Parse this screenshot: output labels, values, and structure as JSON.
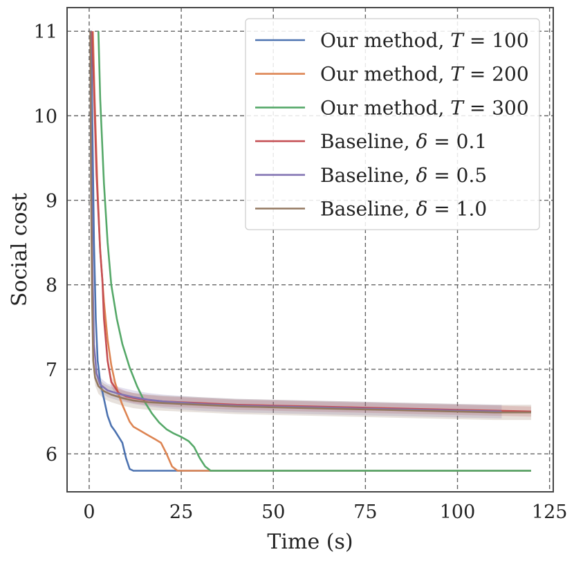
{
  "chart_data": {
    "type": "line",
    "title": "",
    "xlabel": "Time (s)",
    "ylabel": "Social cost",
    "xlim": [
      -6,
      126
    ],
    "ylim": [
      5.55,
      11.28
    ],
    "xticks": [
      0,
      25,
      50,
      75,
      100,
      125
    ],
    "yticks": [
      6,
      7,
      8,
      9,
      10,
      11
    ],
    "xtick_labels": [
      "0",
      "25",
      "50",
      "75",
      "100",
      "125"
    ],
    "ytick_labels": [
      "6",
      "7",
      "8",
      "9",
      "10",
      "11"
    ],
    "grid": true,
    "legend_position": "top-right",
    "series": [
      {
        "name": "Our method, T = 100",
        "name_main": "Our method, ",
        "name_sym": "T",
        "name_tail": " = 100",
        "color": "#4c72b0",
        "x": [
          0.5,
          0.9,
          1.3,
          1.8,
          2.3,
          3.0,
          4.0,
          5.0,
          6.0,
          7.0,
          8.0,
          9.0,
          10.0,
          11.0,
          12.0,
          15,
          20,
          30,
          50,
          80,
          100,
          120
        ],
        "y": [
          11.0,
          9.8,
          8.5,
          7.6,
          7.1,
          6.85,
          6.65,
          6.45,
          6.33,
          6.27,
          6.2,
          6.13,
          5.95,
          5.82,
          5.8,
          5.8,
          5.8,
          5.8,
          5.8,
          5.8,
          5.8,
          5.8
        ]
      },
      {
        "name": "Our method, T = 200",
        "name_main": "Our method, ",
        "name_sym": "T",
        "name_tail": " = 200",
        "color": "#dd8452",
        "x": [
          1.0,
          1.5,
          2.2,
          3.0,
          4.0,
          5.0,
          6.0,
          7.0,
          8.0,
          9.0,
          10.0,
          11.0,
          12.0,
          14.0,
          16.0,
          18.0,
          19.5,
          21.0,
          22.5,
          24.0,
          30,
          50,
          80,
          100,
          120
        ],
        "y": [
          11.0,
          10.2,
          9.2,
          8.4,
          7.8,
          7.35,
          7.05,
          6.85,
          6.7,
          6.58,
          6.48,
          6.38,
          6.32,
          6.27,
          6.22,
          6.17,
          6.13,
          6.0,
          5.85,
          5.8,
          5.8,
          5.8,
          5.8,
          5.8,
          5.8
        ]
      },
      {
        "name": "Our method, T = 300",
        "name_main": "Our method, ",
        "name_sym": "T",
        "name_tail": " = 300",
        "color": "#55a868",
        "x": [
          2.5,
          3.0,
          4.0,
          5.0,
          6.0,
          7.5,
          9.0,
          11.0,
          13.0,
          15.0,
          17.0,
          19.0,
          21.0,
          23.0,
          25.0,
          27.0,
          28.5,
          30.0,
          31.5,
          33.0,
          40,
          60,
          90,
          120
        ],
        "y": [
          11.0,
          10.2,
          9.2,
          8.5,
          8.0,
          7.6,
          7.3,
          7.02,
          6.8,
          6.62,
          6.48,
          6.37,
          6.29,
          6.24,
          6.2,
          6.15,
          6.08,
          5.95,
          5.85,
          5.8,
          5.8,
          5.8,
          5.8,
          5.8
        ]
      },
      {
        "name": "Baseline, δ = 0.1",
        "name_main": "Baseline, ",
        "name_sym": "δ",
        "name_tail": " = 0.1",
        "color": "#c44e52",
        "band": 0.06,
        "x": [
          0.8,
          1.3,
          2.0,
          3.0,
          3.6,
          4.0,
          5.0,
          6.0,
          8.0,
          10.0,
          12,
          15,
          20,
          30,
          40,
          50,
          60,
          70,
          80,
          90,
          100,
          110,
          120
        ],
        "y": [
          11.0,
          10.3,
          9.3,
          8.4,
          8.05,
          7.6,
          7.1,
          6.85,
          6.72,
          6.68,
          6.66,
          6.64,
          6.62,
          6.6,
          6.58,
          6.57,
          6.56,
          6.55,
          6.54,
          6.53,
          6.52,
          6.51,
          6.5
        ]
      },
      {
        "name": "Baseline, δ = 0.5",
        "name_main": "Baseline, ",
        "name_sym": "δ",
        "name_tail": " = 0.5",
        "color": "#8172b2",
        "band": 0.08,
        "x": [
          0.4,
          0.6,
          0.9,
          1.3,
          2.0,
          3.0,
          5.0,
          8.0,
          12,
          16,
          20,
          30,
          40,
          50,
          60,
          70,
          80,
          90,
          100,
          112
        ],
        "y": [
          11.0,
          9.5,
          8.2,
          7.3,
          6.95,
          6.82,
          6.75,
          6.71,
          6.67,
          6.64,
          6.62,
          6.59,
          6.57,
          6.56,
          6.55,
          6.54,
          6.53,
          6.52,
          6.51,
          6.5
        ]
      },
      {
        "name": "Baseline, δ = 1.0",
        "name_main": "Baseline, ",
        "name_sym": "δ",
        "name_tail": " = 1.0",
        "color": "#937860",
        "band": 0.09,
        "x": [
          0.3,
          0.5,
          0.8,
          1.1,
          1.6,
          2.5,
          4.0,
          6.0,
          9.0,
          12,
          16,
          20,
          30,
          40,
          50,
          60,
          70,
          80,
          90,
          100,
          110,
          120
        ],
        "y": [
          11.0,
          9.2,
          7.8,
          7.1,
          6.9,
          6.8,
          6.74,
          6.7,
          6.66,
          6.63,
          6.61,
          6.6,
          6.58,
          6.56,
          6.55,
          6.54,
          6.53,
          6.52,
          6.51,
          6.5,
          6.49,
          6.49
        ]
      }
    ]
  }
}
